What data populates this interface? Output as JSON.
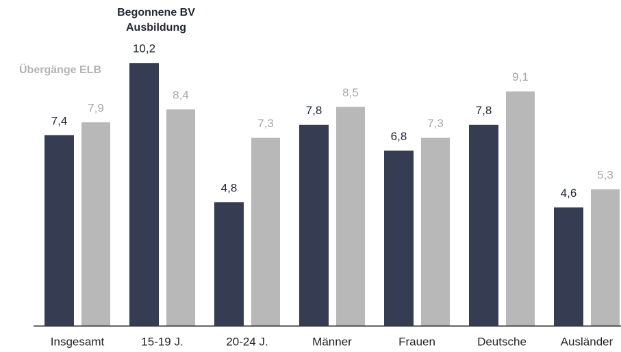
{
  "chart_data": {
    "type": "bar",
    "categories": [
      "Insgesamt",
      "15-19 J.",
      "20-24 J.",
      "Männer",
      "Frauen",
      "Deutsche",
      "Ausländer"
    ],
    "series": [
      {
        "name": "Begonnene BV Ausbildung",
        "color": "#363d52",
        "label_color": "#1f2533",
        "values": [
          7.4,
          10.2,
          4.8,
          7.8,
          6.8,
          7.8,
          4.6
        ],
        "value_labels": [
          "7,4",
          "10,2",
          "4,8",
          "7,8",
          "6,8",
          "7,8",
          "4,6"
        ]
      },
      {
        "name": "Übergänge ELB",
        "color": "#b8b8b8",
        "label_color": "#a6a6a6",
        "values": [
          7.9,
          8.4,
          7.3,
          8.5,
          7.3,
          9.1,
          5.3
        ],
        "value_labels": [
          "7,9",
          "8,4",
          "7,3",
          "8,5",
          "7,3",
          "9,1",
          "5,3"
        ]
      }
    ],
    "ylim": [
      0,
      11
    ]
  }
}
